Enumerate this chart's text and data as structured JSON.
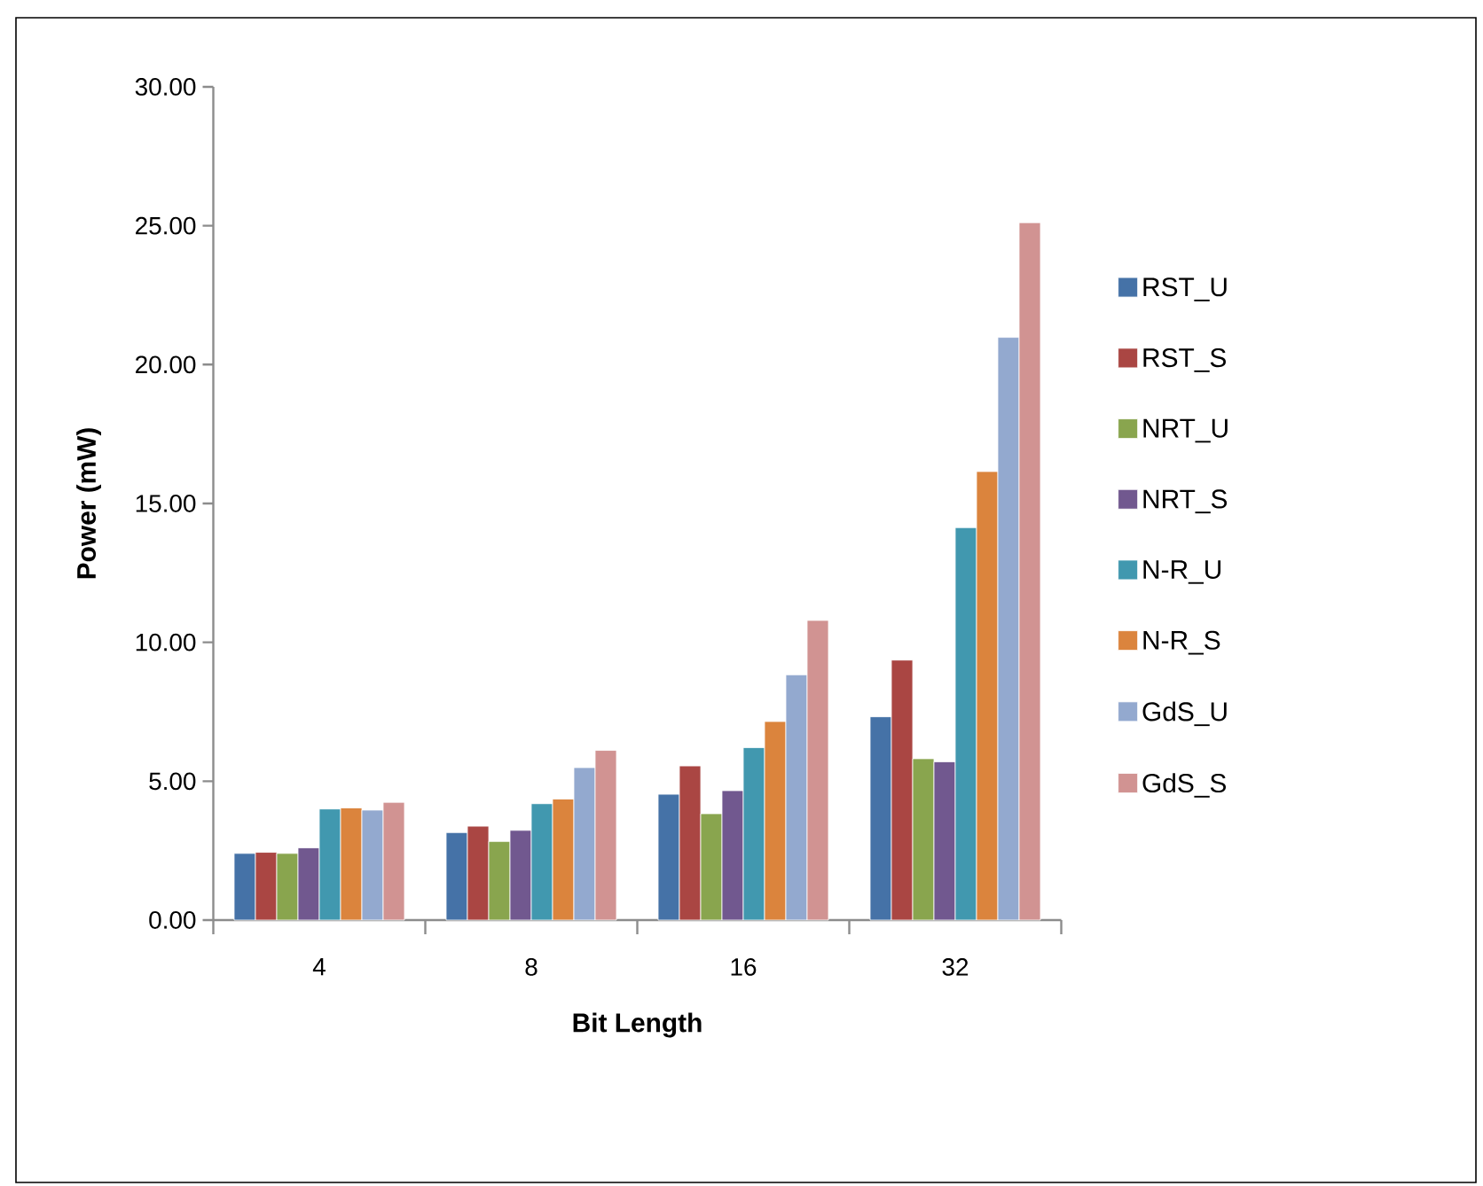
{
  "chart_data": {
    "type": "bar",
    "xlabel": "Bit Length",
    "ylabel": "Power (mW)",
    "categories": [
      "4",
      "8",
      "16",
      "32"
    ],
    "series": [
      {
        "name": "RST_U",
        "color": "#4572a7",
        "values": [
          2.4,
          3.15,
          4.53,
          7.32
        ]
      },
      {
        "name": "RST_S",
        "color": "#aa4643",
        "values": [
          2.44,
          3.38,
          5.55,
          9.36
        ]
      },
      {
        "name": "NRT_U",
        "color": "#89a54e",
        "values": [
          2.4,
          2.83,
          3.83,
          5.81
        ]
      },
      {
        "name": "NRT_S",
        "color": "#71588f",
        "values": [
          2.6,
          3.23,
          4.66,
          5.7
        ]
      },
      {
        "name": "N-R_U",
        "color": "#4198af",
        "values": [
          4.0,
          4.19,
          6.21,
          14.13
        ]
      },
      {
        "name": "N-R_S",
        "color": "#db843d",
        "values": [
          4.04,
          4.36,
          7.15,
          16.15
        ]
      },
      {
        "name": "GdS_U",
        "color": "#93a9cf",
        "values": [
          3.96,
          5.49,
          8.83,
          20.98
        ]
      },
      {
        "name": "GdS_S",
        "color": "#d19392",
        "values": [
          4.24,
          6.11,
          10.79,
          25.11
        ]
      }
    ],
    "ylim": [
      0,
      30
    ],
    "yticks": [
      {
        "value": 0,
        "label": "0.00"
      },
      {
        "value": 5,
        "label": "5.00"
      },
      {
        "value": 10,
        "label": "10.00"
      },
      {
        "value": 15,
        "label": "15.00"
      },
      {
        "value": 20,
        "label": "20.00"
      },
      {
        "value": 25,
        "label": "25.00"
      },
      {
        "value": 30,
        "label": "30.00"
      }
    ],
    "grid": false,
    "legend": "right"
  }
}
